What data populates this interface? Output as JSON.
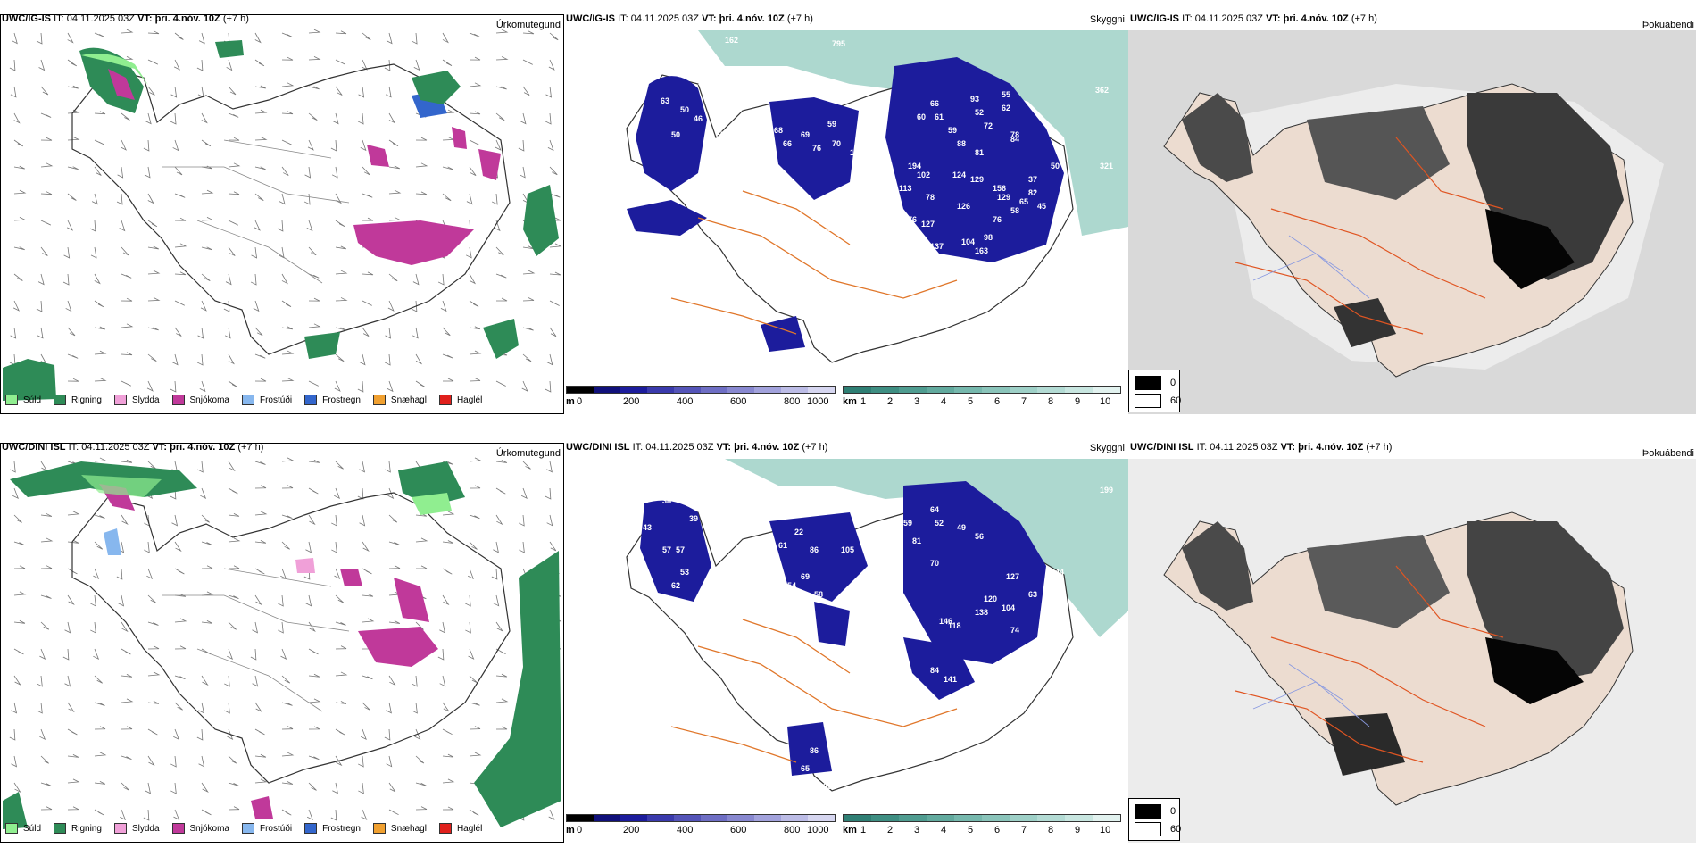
{
  "colors": {
    "sudd": "#90ee90",
    "rigning": "#2e8b57",
    "slydda": "#f0a0d8",
    "snjokoma": "#c0399a",
    "frostudi": "#87b7ee",
    "frostregn": "#3366cc",
    "snaehagl": "#f0a030",
    "haglel": "#e0201c",
    "cloud_low": "#1c1c9c",
    "cloud_teal": "#6ab8a8",
    "road": "#e0762a",
    "dark_shade": "#000000"
  },
  "rows": [
    {
      "model": "UWC/IG-IS",
      "it_label": "IT:",
      "it_value": "04.11.2025 03Z",
      "vt_label": "VT:",
      "vt_value": "þri. 4.nóv. 10Z",
      "lead": "(+7 h)",
      "precip_label": "Úrkomutegund",
      "cloud_label": "Skyggni",
      "vis_label": "Þokuábendi",
      "cloud_numbers": [
        "162",
        "795",
        "47",
        "36",
        "63",
        "50",
        "46",
        "50",
        "52",
        "65",
        "68",
        "66",
        "69",
        "76",
        "70",
        "59",
        "135",
        "170",
        "83",
        "105",
        "132",
        "194",
        "102",
        "124",
        "129",
        "113",
        "78",
        "126",
        "176",
        "127",
        "84",
        "100",
        "137",
        "130",
        "163",
        "104",
        "98",
        "66",
        "60",
        "61",
        "59",
        "88",
        "81",
        "72",
        "62",
        "55",
        "93",
        "52",
        "78",
        "84",
        "362",
        "321",
        "50",
        "82",
        "65",
        "58",
        "76",
        "37",
        "45",
        "129",
        "156"
      ]
    },
    {
      "model": "UWC/DINI ISL",
      "it_label": "IT:",
      "it_value": "04.11.2025 03Z",
      "vt_label": "VT:",
      "vt_value": "þri. 4.nóv. 10Z",
      "lead": "(+7 h)",
      "precip_label": "Úrkomutegund",
      "cloud_label": "Skyggni",
      "vis_label": "Þokuábendi",
      "cloud_numbers": [
        "38",
        "39",
        "43",
        "57",
        "57",
        "53",
        "62",
        "53",
        "57",
        "22",
        "86",
        "61",
        "54",
        "69",
        "58",
        "108",
        "105",
        "81",
        "70",
        "52",
        "49",
        "56",
        "64",
        "146",
        "118",
        "138",
        "120",
        "104",
        "127",
        "63",
        "84",
        "141",
        "190",
        "82",
        "101",
        "148",
        "104",
        "86",
        "65",
        "85",
        "199",
        "44",
        "59",
        "65",
        "74"
      ]
    }
  ],
  "precip_legend": [
    {
      "label": "Súld",
      "color": "#90ee90"
    },
    {
      "label": "Rigning",
      "color": "#2e8b57"
    },
    {
      "label": "Slydda",
      "color": "#f0a0d8"
    },
    {
      "label": "Snjókoma",
      "color": "#c0399a"
    },
    {
      "label": "Frostúði",
      "color": "#87b7ee"
    },
    {
      "label": "Frostregn",
      "color": "#3366cc"
    },
    {
      "label": "Snæhagl",
      "color": "#f0a030"
    },
    {
      "label": "Haglél",
      "color": "#e0201c"
    }
  ],
  "cloud_base_scale": {
    "unit": "m",
    "ticks": [
      "0",
      "200",
      "400",
      "600",
      "800",
      "1000"
    ],
    "colors": [
      "#000000",
      "#10107a",
      "#1c1c9c",
      "#3a3aac",
      "#5454b8",
      "#6e6ec4",
      "#8888d0",
      "#a2a2dc",
      "#bcbce6",
      "#d6d6f0"
    ]
  },
  "visibility_scale": {
    "unit": "km",
    "ticks": [
      "1",
      "2",
      "3",
      "4",
      "5",
      "6",
      "7",
      "8",
      "9",
      "10"
    ],
    "colors": [
      "#2f7f74",
      "#3e8e82",
      "#4f9c90",
      "#62aa9e",
      "#76b8ad",
      "#8ac4ba",
      "#9ed0c7",
      "#b3dbd4",
      "#c8e6e0",
      "#e2f2ef"
    ]
  },
  "fog_scale": {
    "items": [
      {
        "value": "0",
        "color": "#000000"
      },
      {
        "value": "60",
        "color": "#ffffff"
      }
    ]
  }
}
